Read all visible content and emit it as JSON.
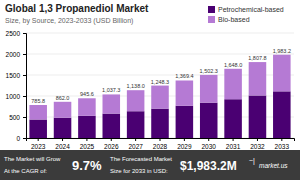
{
  "chart_data": {
    "type": "bar",
    "stacked": true,
    "title": "Global 1,3 Propanediol Market",
    "subtitle": "Size, by Source, 2023-2033 (USD Billion)",
    "categories": [
      "2023",
      "2024",
      "2025",
      "2026",
      "2027",
      "2028",
      "2029",
      "2030",
      "2031",
      "2032",
      "2033"
    ],
    "series": [
      {
        "name": "Petrochemical-based",
        "color": "#4a0072",
        "values": [
          440.048,
          482.72,
          529.536,
          580.888,
          637.28,
          699.048,
          766.864,
          841.288,
          922.88,
          1012.368,
          1110.592
        ]
      },
      {
        "name": "Bio-based",
        "color": "#b57ad4",
        "values": [
          345.752,
          379.28,
          416.064,
          456.412,
          500.72,
          549.252,
          602.536,
          661.012,
          725.12,
          795.432,
          872.608
        ]
      }
    ],
    "totals": [
      785.8,
      862.0,
      945.6,
      1037.3,
      1138.0,
      1248.3,
      1369.4,
      1502.3,
      1648.0,
      1807.8,
      1983.2
    ],
    "total_labels": [
      "785.8",
      "862.0",
      "945.6",
      "1,037.3",
      "1,138.0",
      "1,248.3",
      "1,369.4",
      "1,502.3",
      "1,648.0",
      "1,807.8",
      "1,983.2"
    ],
    "ylim": [
      0,
      2500
    ],
    "yticks": [
      0,
      500,
      1000,
      1500,
      2000,
      2500
    ],
    "grid": true,
    "legend": "top-right",
    "annotations": [
      "The Market will Grow",
      "At the CAGR of:",
      "9.7%",
      "The Forecasted Market",
      "Size for 2033 in USD:",
      "$1,983.2M",
      "~|",
      "market.us"
    ]
  }
}
